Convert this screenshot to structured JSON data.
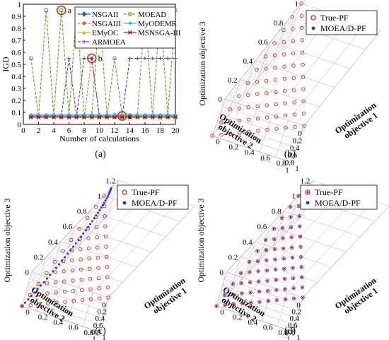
{
  "colors": {
    "NSGAII": "#1f5fbf",
    "NSGAIII": "#c8702a",
    "EMyOC": "#d9b21a",
    "ARMOEA": "#6a2fa0",
    "MOEAD": "#5aa02c",
    "MyODEMR": "#3cb0d8",
    "MSNSGA-III": "#8b2020",
    "true_pf": "#cc2a1f",
    "moead_pf": "#2b2be0",
    "grid": "#b0b0b0",
    "highlight": "#cc2a1f"
  },
  "panels": [
    {
      "caption": "(a)"
    },
    {
      "caption": "(b)"
    },
    {
      "caption": "(c)"
    },
    {
      "caption": "(d)"
    }
  ],
  "chart_data": [
    {
      "type": "line",
      "panel": "(a)",
      "xlabel": "Number of calculations",
      "ylabel": "IGD",
      "xlim": [
        0,
        20
      ],
      "ylim": [
        0,
        1
      ],
      "xticks": [
        "0",
        "2",
        "4",
        "6",
        "8",
        "10",
        "12",
        "14",
        "16",
        "18",
        "20"
      ],
      "yticks": [
        "0",
        "0.1",
        "0.2",
        "0.3",
        "0.4",
        "0.5",
        "0.6",
        "0.7",
        "0.8",
        "0.9",
        "1"
      ],
      "legend_position": "top",
      "x": [
        1,
        2,
        3,
        4,
        5,
        6,
        7,
        8,
        9,
        10,
        11,
        12,
        13,
        14,
        15,
        16,
        17,
        18,
        19,
        20
      ],
      "series": [
        {
          "name": "NSGAII",
          "marker": "diamond",
          "values": [
            0.07,
            0.07,
            0.07,
            0.07,
            0.07,
            0.07,
            0.07,
            0.07,
            0.07,
            0.07,
            0.07,
            0.07,
            0.07,
            0.07,
            0.07,
            0.07,
            0.07,
            0.07,
            0.07,
            0.07
          ]
        },
        {
          "name": "NSGAIII",
          "marker": "circle",
          "values": [
            0.06,
            0.06,
            0.06,
            0.06,
            0.06,
            0.06,
            0.06,
            0.06,
            0.55,
            0.06,
            0.06,
            0.06,
            0.06,
            0.06,
            0.06,
            0.06,
            0.06,
            0.06,
            0.06,
            0.06
          ]
        },
        {
          "name": "EMyOC",
          "marker": "triangle",
          "values": [
            0.06,
            0.06,
            0.06,
            0.06,
            0.06,
            0.06,
            0.06,
            0.06,
            0.06,
            0.06,
            0.06,
            0.06,
            0.06,
            0.06,
            0.06,
            0.06,
            0.06,
            0.06,
            0.06,
            0.06
          ]
        },
        {
          "name": "ARMOEA",
          "marker": "plus",
          "values": [
            0.07,
            0.07,
            0.07,
            0.07,
            0.07,
            0.55,
            0.07,
            0.55,
            0.55,
            0.07,
            0.07,
            0.07,
            0.07,
            0.55,
            0.55,
            0.55,
            0.55,
            0.55,
            0.55,
            0.55
          ]
        },
        {
          "name": "MOEAD",
          "marker": "square",
          "values": [
            0.55,
            0.07,
            0.95,
            0.07,
            0.95,
            0.07,
            0.95,
            0.07,
            0.07,
            0.95,
            0.07,
            0.55,
            0.07,
            0.07,
            0.07,
            0.95,
            0.07,
            0.95,
            0.07,
            0.95
          ]
        },
        {
          "name": "MyODEMR",
          "marker": "hexagram",
          "values": [
            0.08,
            0.08,
            0.08,
            0.08,
            0.08,
            0.08,
            0.08,
            0.08,
            0.08,
            0.08,
            0.08,
            0.08,
            0.08,
            0.08,
            0.08,
            0.08,
            0.08,
            0.08,
            0.08,
            0.08
          ]
        },
        {
          "name": "MSNSGA-III",
          "marker": "star",
          "values": [
            0.06,
            0.06,
            0.06,
            0.06,
            0.06,
            0.06,
            0.06,
            0.06,
            0.06,
            0.06,
            0.06,
            0.06,
            0.06,
            0.06,
            0.06,
            0.06,
            0.06,
            0.06,
            0.06,
            0.06
          ]
        }
      ],
      "annotations": [
        {
          "text": "a",
          "x": 5,
          "y": 0.95
        },
        {
          "text": "b",
          "x": 9,
          "y": 0.55
        },
        {
          "text": "c",
          "x": 13,
          "y": 0.07
        }
      ]
    },
    {
      "type": "scatter3d",
      "panel": "(b)",
      "xlabel": "Optimization objective 1",
      "ylabel": "Optimization objective 2",
      "zlabel": "Optimization objective 3",
      "axis_ticks": [
        "0",
        "0.2",
        "0.4",
        "0.6",
        "0.8",
        "1"
      ],
      "z_ticks": [
        "0",
        "0.2",
        "0.4",
        "0.6",
        "0.8",
        "1"
      ],
      "legend": [
        "True-PF",
        "MOEA/D-PF"
      ],
      "legend_position": "top-right",
      "front_shape": "linear plane f1+f2+f3=1, 10 divisions",
      "moead_front": "none plotted"
    },
    {
      "type": "scatter3d",
      "panel": "(c)",
      "xlabel": "Optimization objective 1",
      "ylabel": "Optimization objective 2",
      "zlabel": "Optimization objective 3",
      "axis_ticks": [
        "0",
        "0.2",
        "0.4",
        "0.6",
        "0.8",
        "1"
      ],
      "z_ticks": [
        "0",
        "0.2",
        "0.4",
        "0.6",
        "0.8",
        "1",
        "1.2"
      ],
      "legend": [
        "True-PF",
        "MOEA/D-PF"
      ],
      "legend_position": "top-right",
      "front_shape": "linear plane f1+f2+f3=1, 10 divisions",
      "moead_front": "degenerate arc in f2-f3 plane"
    },
    {
      "type": "scatter3d",
      "panel": "(d)",
      "xlabel": "Optimization objective 1",
      "ylabel": "Optimization objective 2",
      "zlabel": "Optimization objective 3",
      "axis_ticks": [
        "0",
        "0.2",
        "0.4",
        "0.6",
        "0.8",
        "1"
      ],
      "z_ticks": [
        "0",
        "0.2",
        "0.4",
        "0.6",
        "0.8",
        "1",
        "1.2"
      ],
      "legend": [
        "True-PF",
        "MOEA/D-PF"
      ],
      "legend_position": "top-right",
      "front_shape": "linear plane f1+f2+f3=1, 10 divisions",
      "moead_front": "coincides with True-PF"
    }
  ]
}
